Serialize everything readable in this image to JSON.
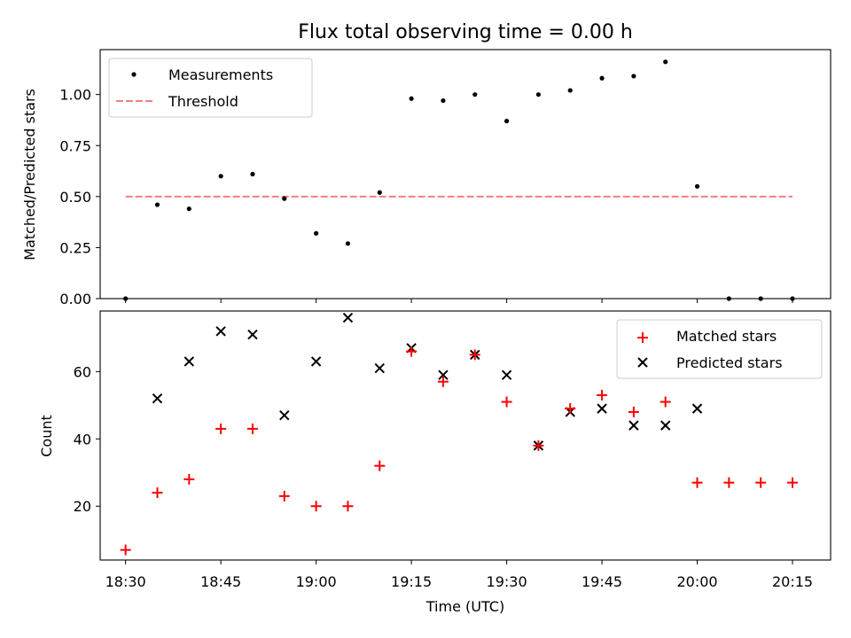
{
  "chart_data": {
    "type": "scatter",
    "title": "Flux total observing time = 0.00 h",
    "xlabel": "Time (UTC)",
    "x_tick_labels": [
      "18:30",
      "18:45",
      "19:00",
      "19:15",
      "19:30",
      "19:45",
      "20:00",
      "20:15"
    ],
    "x_tick_minutes": [
      0,
      15,
      30,
      45,
      60,
      75,
      90,
      105
    ],
    "x_minutes": [
      0,
      5,
      10,
      15,
      20,
      25,
      30,
      35,
      40,
      45,
      50,
      55,
      60,
      65,
      70,
      75,
      80,
      85,
      90,
      95,
      100,
      105
    ],
    "xlim": [
      -4,
      111
    ],
    "top": {
      "ylabel": "Matched/Predicted stars",
      "ylim": [
        0,
        1.22
      ],
      "y_ticks": [
        0,
        0.25,
        0.5,
        0.75,
        1.0
      ],
      "y_tick_labels": [
        "0.00",
        "0.25",
        "0.50",
        "0.75",
        "1.00"
      ],
      "legend_position": "upper-left",
      "series": [
        {
          "name": "Measurements",
          "color": "#000000",
          "marker": "dot",
          "values": [
            0.0,
            0.46,
            0.44,
            0.6,
            0.61,
            0.49,
            0.32,
            0.27,
            0.52,
            0.98,
            0.97,
            1.0,
            0.87,
            1.0,
            1.02,
            1.08,
            1.09,
            1.16,
            0.55,
            0.0,
            0.0,
            0.0
          ]
        }
      ],
      "threshold": {
        "name": "Threshold",
        "value": 0.5,
        "x_from": 0,
        "x_to": 105,
        "color": "#f08080"
      }
    },
    "bottom": {
      "ylabel": "Count",
      "ylim": [
        4,
        78
      ],
      "y_ticks": [
        20,
        40,
        60
      ],
      "y_tick_labels": [
        "20",
        "40",
        "60"
      ],
      "legend_position": "upper-right",
      "series": [
        {
          "name": "Matched stars",
          "color": "#ff0000",
          "marker": "plus",
          "values": [
            7,
            24,
            28,
            43,
            43,
            23,
            20,
            20,
            32,
            66,
            57,
            65,
            51,
            38,
            49,
            53,
            48,
            51,
            27,
            27,
            27,
            27
          ]
        },
        {
          "name": "Predicted stars",
          "color": "#000000",
          "marker": "x",
          "values": [
            null,
            52,
            63,
            72,
            71,
            47,
            63,
            76,
            61,
            67,
            59,
            65,
            59,
            38,
            48,
            49,
            44,
            44,
            49,
            null,
            null,
            null
          ]
        }
      ]
    }
  }
}
